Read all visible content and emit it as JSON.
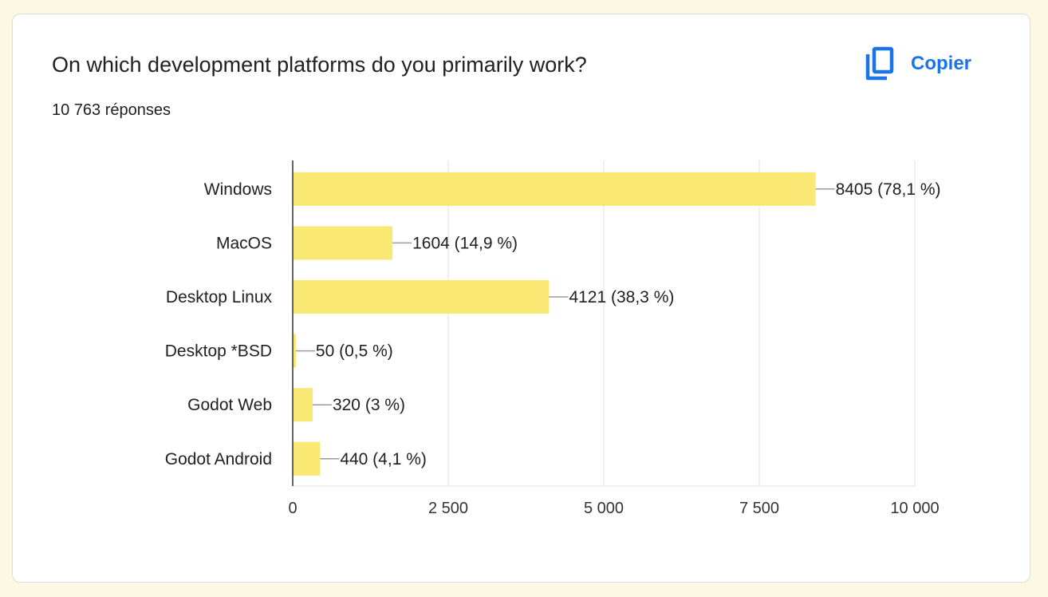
{
  "card": {
    "title": "On which development platforms do you primarily work?",
    "response_count": "10 763 réponses",
    "copy_label": "Copier"
  },
  "colors": {
    "bar": "#f9e873",
    "accent": "#1a73e8",
    "grid": "#e6e6e6",
    "text": "#202124"
  },
  "chart_data": {
    "type": "bar",
    "orientation": "horizontal",
    "categories": [
      "Windows",
      "MacOS",
      "Desktop Linux",
      "Desktop *BSD",
      "Godot Web",
      "Godot Android"
    ],
    "values": [
      8405,
      1604,
      4121,
      50,
      320,
      440
    ],
    "labels": [
      "8405 (78,1 %)",
      "1604 (14,9 %)",
      "4121 (38,3 %)",
      "50 (0,5 %)",
      "320 (3 %)",
      "440 (4,1 %)"
    ],
    "xticks": [
      0,
      2500,
      5000,
      7500,
      10000
    ],
    "xtick_labels": [
      "0",
      "2 500",
      "5 000",
      "7 500",
      "10 000"
    ],
    "xlim": [
      0,
      10000
    ],
    "title": "On which development platforms do you primarily work?",
    "xlabel": "",
    "ylabel": "",
    "grid": true
  }
}
